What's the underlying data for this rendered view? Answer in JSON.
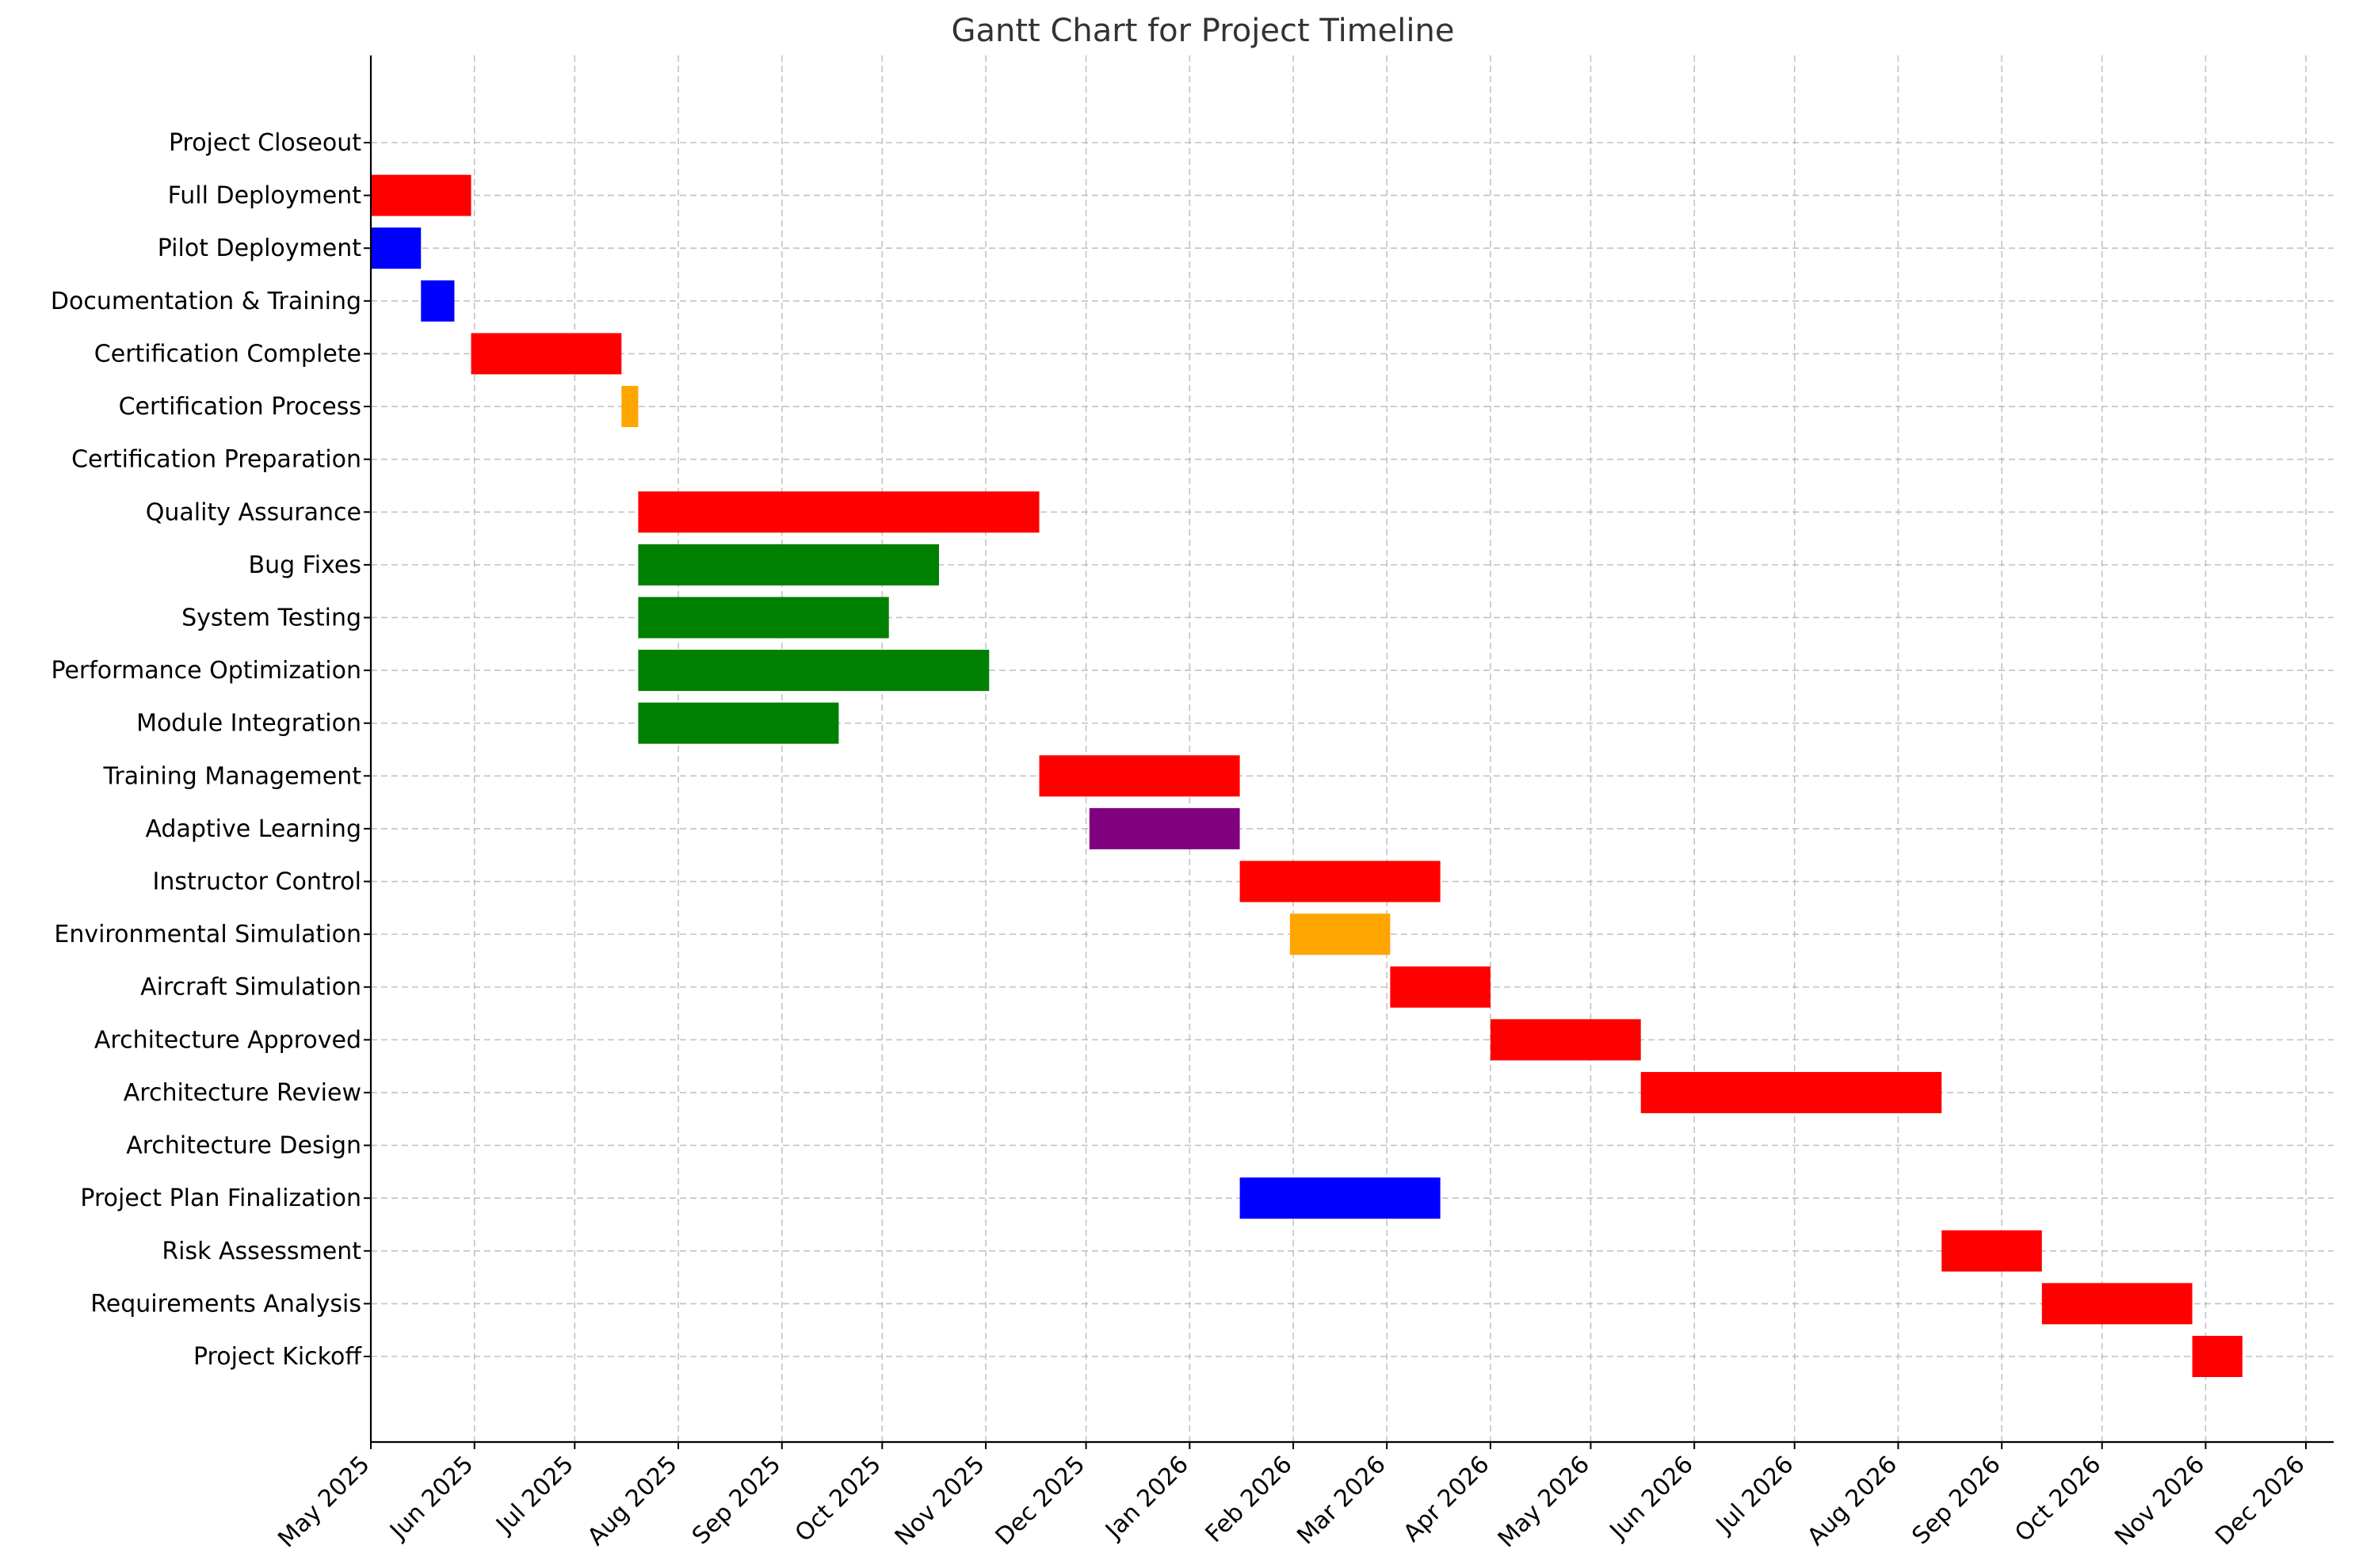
{
  "chart_data": {
    "type": "gantt",
    "title": "Gantt Chart for Project Timeline",
    "xlabel": "",
    "ylabel": "",
    "grid": true,
    "xlim": [
      "2025-05-01",
      "2026-12-01"
    ],
    "x_ticks": [
      "May 2025",
      "Jun 2025",
      "Jul 2025",
      "Aug 2025",
      "Sep 2025",
      "Oct 2025",
      "Nov 2025",
      "Dec 2025",
      "Jan 2026",
      "Feb 2026",
      "Mar 2026",
      "Apr 2026",
      "May 2026",
      "Jun 2026",
      "Jul 2026",
      "Aug 2026",
      "Sep 2026",
      "Oct 2026",
      "Nov 2026",
      "Dec 2026"
    ],
    "x_tick_dates": [
      "2025-05-01",
      "2025-06-01",
      "2025-07-01",
      "2025-08-01",
      "2025-09-01",
      "2025-10-01",
      "2025-11-01",
      "2025-12-01",
      "2026-01-01",
      "2026-02-01",
      "2026-03-01",
      "2026-04-01",
      "2026-05-01",
      "2026-06-01",
      "2026-07-01",
      "2026-08-01",
      "2026-09-01",
      "2026-10-01",
      "2026-11-01",
      "2026-12-01"
    ],
    "tasks": [
      {
        "name": "Project Closeout",
        "start": null,
        "end": null,
        "color": ""
      },
      {
        "name": "Full Deployment",
        "start": "2025-05-01",
        "end": "2025-05-31",
        "color": "#ff0000"
      },
      {
        "name": "Pilot Deployment",
        "start": "2025-05-01",
        "end": "2025-05-16",
        "color": "#0000ff"
      },
      {
        "name": "Documentation & Training",
        "start": "2025-05-16",
        "end": "2025-05-26",
        "color": "#0000ff"
      },
      {
        "name": "Certification Complete",
        "start": "2025-05-31",
        "end": "2025-07-15",
        "color": "#ff0000"
      },
      {
        "name": "Certification Process",
        "start": "2025-07-15",
        "end": "2025-07-20",
        "color": "#ffa500"
      },
      {
        "name": "Certification Preparation",
        "start": null,
        "end": null,
        "color": ""
      },
      {
        "name": "Quality Assurance",
        "start": "2025-07-20",
        "end": "2025-11-17",
        "color": "#ff0000"
      },
      {
        "name": "Bug Fixes",
        "start": "2025-07-20",
        "end": "2025-10-18",
        "color": "#008000"
      },
      {
        "name": "System Testing",
        "start": "2025-07-20",
        "end": "2025-10-03",
        "color": "#008000"
      },
      {
        "name": "Performance Optimization",
        "start": "2025-07-20",
        "end": "2025-11-02",
        "color": "#008000"
      },
      {
        "name": "Module Integration",
        "start": "2025-07-20",
        "end": "2025-09-18",
        "color": "#008000"
      },
      {
        "name": "Training Management",
        "start": "2025-11-17",
        "end": "2026-01-16",
        "color": "#ff0000"
      },
      {
        "name": "Adaptive Learning",
        "start": "2025-12-02",
        "end": "2026-01-16",
        "color": "#800080"
      },
      {
        "name": "Instructor Control",
        "start": "2026-01-16",
        "end": "2026-03-17",
        "color": "#ff0000"
      },
      {
        "name": "Environmental Simulation",
        "start": "2026-01-31",
        "end": "2026-03-02",
        "color": "#ffa500"
      },
      {
        "name": "Aircraft Simulation",
        "start": "2026-03-02",
        "end": "2026-04-01",
        "color": "#ff0000"
      },
      {
        "name": "Architecture Approved",
        "start": "2026-04-01",
        "end": "2026-05-16",
        "color": "#ff0000"
      },
      {
        "name": "Architecture Review",
        "start": "2026-05-16",
        "end": "2026-08-14",
        "color": "#ff0000"
      },
      {
        "name": "Architecture Design",
        "start": null,
        "end": null,
        "color": ""
      },
      {
        "name": "Project Plan Finalization",
        "start": "2026-01-16",
        "end": "2026-03-17",
        "color": "#0000ff"
      },
      {
        "name": "Risk Assessment",
        "start": "2026-08-14",
        "end": "2026-09-13",
        "color": "#ff0000"
      },
      {
        "name": "Requirements Analysis",
        "start": "2026-09-13",
        "end": "2026-10-28",
        "color": "#ff0000"
      },
      {
        "name": "Project Kickoff",
        "start": "2026-10-28",
        "end": "2026-11-12",
        "color": "#ff0000"
      }
    ]
  }
}
